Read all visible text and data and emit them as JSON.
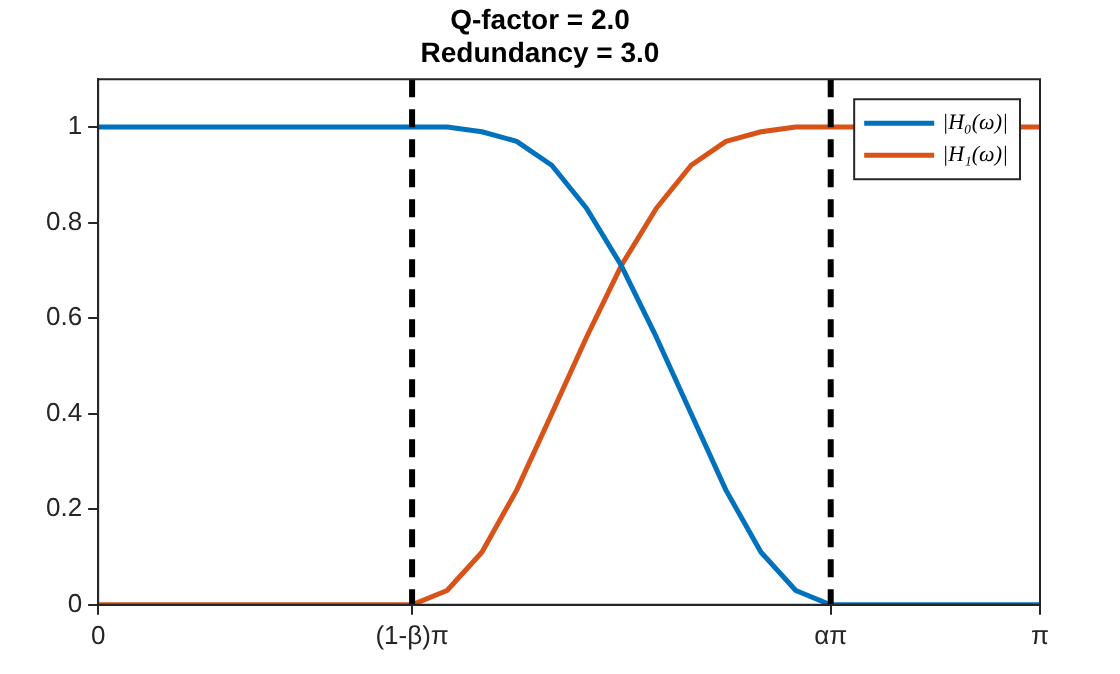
{
  "chart_data": {
    "type": "line",
    "title": "Q-factor = 2.0",
    "subtitle": "Redundancy = 3.0",
    "x": [
      0,
      1.047,
      1.164,
      1.28,
      1.396,
      1.513,
      1.629,
      1.745,
      1.862,
      1.978,
      2.094,
      2.211,
      2.327,
      2.443,
      3.1416
    ],
    "series": [
      {
        "name": "|H₀(ω)|",
        "color": "#0072bd",
        "values": [
          1,
          1,
          1.0,
          0.99,
          0.97,
          0.92,
          0.83,
          0.71,
          0.56,
          0.4,
          0.24,
          0.11,
          0.03,
          0,
          0
        ]
      },
      {
        "name": "|H₁(ω)|",
        "color": "#d95319",
        "values": [
          0,
          0,
          0.03,
          0.11,
          0.24,
          0.4,
          0.56,
          0.71,
          0.83,
          0.92,
          0.97,
          0.99,
          1.0,
          1,
          1
        ]
      }
    ],
    "xlim": [
      0,
      3.1416
    ],
    "xticks": [
      0,
      {
        "value": 1.0472,
        "label": "(1-β)π"
      },
      {
        "value": 2.4435,
        "label": "απ"
      },
      {
        "value": 3.1416,
        "label": "π"
      }
    ],
    "ylim": [
      0,
      1.1
    ],
    "yticks": [
      0,
      0.2,
      0.4,
      0.6,
      0.8,
      1
    ],
    "ref_lines": [
      {
        "axis": "x",
        "value": 1.0472,
        "color": "#000000",
        "line_style": "dashed"
      },
      {
        "axis": "x",
        "value": 2.4435,
        "color": "#000000",
        "line_style": "dashed"
      }
    ],
    "legend": "top right",
    "marker": "none",
    "line_style": "solid"
  }
}
